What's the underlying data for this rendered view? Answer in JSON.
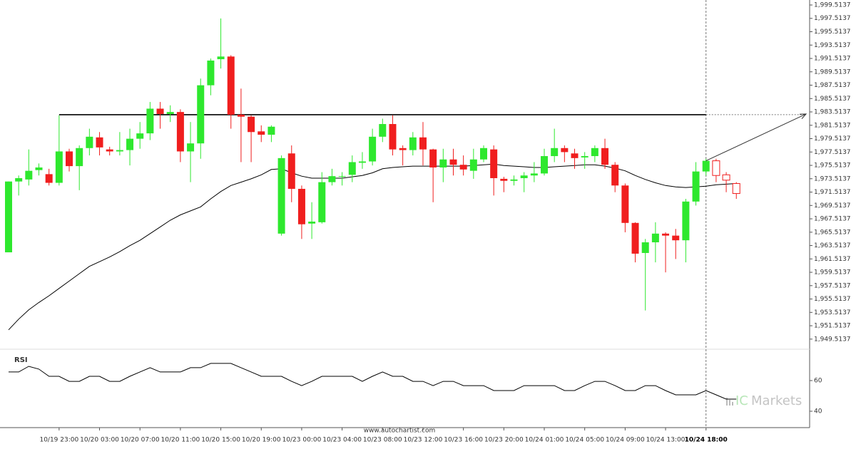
{
  "chart_data": {
    "type": "candlestick",
    "up_color": "#2ee82e",
    "down_color": "#f01e1e",
    "ylim": [
      1948.0,
      2000.26
    ],
    "yticks": [
      {
        "value": 1949.5137,
        "label": "1,949.5137"
      },
      {
        "value": 1951.5137,
        "label": "1,951.5137"
      },
      {
        "value": 1953.5137,
        "label": "1,953.5137"
      },
      {
        "value": 1955.5137,
        "label": "1,955.5137"
      },
      {
        "value": 1957.5137,
        "label": "1,957.5137"
      },
      {
        "value": 1959.5137,
        "label": "1,959.5137"
      },
      {
        "value": 1961.5137,
        "label": "1,961.5137"
      },
      {
        "value": 1963.5137,
        "label": "1,963.5137"
      },
      {
        "value": 1965.5137,
        "label": "1,965.5137"
      },
      {
        "value": 1967.5137,
        "label": "1,967.5137"
      },
      {
        "value": 1969.5137,
        "label": "1,969.5137"
      },
      {
        "value": 1971.5137,
        "label": "1,971.5137"
      },
      {
        "value": 1973.5137,
        "label": "1,973.5137"
      },
      {
        "value": 1975.5137,
        "label": "1,975.5137"
      },
      {
        "value": 1977.5137,
        "label": "1,977.5137"
      },
      {
        "value": 1979.5137,
        "label": "1,979.5137"
      },
      {
        "value": 1981.5137,
        "label": "1,981.5137"
      },
      {
        "value": 1983.5137,
        "label": "1,983.5137"
      },
      {
        "value": 1985.5137,
        "label": "1,985.5137"
      },
      {
        "value": 1987.5137,
        "label": "1,987.5137"
      },
      {
        "value": 1989.5137,
        "label": "1,989.5137"
      },
      {
        "value": 1991.5137,
        "label": "1,991.5137"
      },
      {
        "value": 1993.5137,
        "label": "1,993.5137"
      },
      {
        "value": 1995.5137,
        "label": "1,995.5137"
      },
      {
        "value": 1997.5137,
        "label": "1,997.5137"
      },
      {
        "value": 1999.5137,
        "label": "1,999.5137"
      }
    ],
    "xticks": [
      {
        "value": 5,
        "label": "10/19 23:00"
      },
      {
        "value": 9,
        "label": "10/20 03:00"
      },
      {
        "value": 13,
        "label": "10/20 07:00"
      },
      {
        "value": 17,
        "label": "10/20 11:00"
      },
      {
        "value": 21,
        "label": "10/20 15:00"
      },
      {
        "value": 25,
        "label": "10/20 19:00"
      },
      {
        "value": 29,
        "label": "10/23 00:00"
      },
      {
        "value": 33,
        "label": "10/23 04:00"
      },
      {
        "value": 37,
        "label": "10/23 08:00"
      },
      {
        "value": 41,
        "label": "10/23 12:00"
      },
      {
        "value": 45,
        "label": "10/23 16:00"
      },
      {
        "value": 49,
        "label": "10/23 20:00"
      },
      {
        "value": 53,
        "label": "10/24 01:00"
      },
      {
        "value": 57,
        "label": "10/24 05:00"
      },
      {
        "value": 61,
        "label": "10/24 09:00"
      },
      {
        "value": 65,
        "label": "10/24 13:00"
      },
      {
        "value": 69,
        "label": "10/24 18:00"
      }
    ],
    "open": [
      1962.5,
      1973.1,
      1973.4,
      1974.8,
      1974.2,
      1972.9,
      1977.6,
      1975.4,
      1978.1,
      1979.7,
      1977.9,
      1977.6,
      1977.8,
      1979.5,
      1980.3,
      1984.0,
      1983.2,
      1983.5,
      1977.6,
      1978.8,
      1987.5,
      1991.4,
      1991.8,
      1983.1,
      1982.8,
      1980.6,
      1980.1,
      1965.3,
      1977.3,
      1972.0,
      1966.8,
      1967.0,
      1973.0,
      1973.8,
      1974.1,
      1975.9,
      1976.1,
      1979.8,
      1981.7,
      1978.1,
      1977.8,
      1979.7,
      1977.9,
      1975.2,
      1976.4,
      1975.6,
      1974.7,
      1976.4,
      1977.9,
      1973.5,
      1973.2,
      1973.6,
      1974.0,
      1974.3,
      1976.9,
      1978.1,
      1977.3,
      1976.7,
      1976.9,
      1978.1,
      1975.6,
      1972.5,
      1966.9,
      1962.4,
      1964.0,
      1965.3,
      1965.0,
      1964.3,
      1970.1,
      1974.6
    ],
    "high": [
      1973.1,
      1974.0,
      1977.9,
      1975.8,
      1975.0,
      1983.0,
      1978.0,
      1978.5,
      1981.0,
      1980.5,
      1978.3,
      1980.5,
      1981.0,
      1982.0,
      1985.0,
      1985.0,
      1984.5,
      1983.9,
      1982.0,
      1988.5,
      1991.5,
      1997.5,
      1992.0,
      1987.0,
      1983.0,
      1981.5,
      1981.5,
      1977.0,
      1978.5,
      1972.5,
      1970.0,
      1974.5,
      1975.0,
      1974.5,
      1977.0,
      1977.5,
      1981.0,
      1982.5,
      1983.0,
      1978.5,
      1980.5,
      1982.0,
      1978.0,
      1978.0,
      1978.0,
      1977.0,
      1978.0,
      1978.5,
      1978.5,
      1973.8,
      1974.0,
      1974.5,
      1976.0,
      1978.0,
      1981.0,
      1978.5,
      1978.0,
      1977.5,
      1978.5,
      1979.5,
      1976.0,
      1972.8,
      1967.0,
      1964.5,
      1967.0,
      1965.5,
      1966.0,
      1970.5,
      1976.0,
      1976.5
    ],
    "low": [
      1962.5,
      1971.0,
      1972.5,
      1974.0,
      1972.5,
      1972.5,
      1974.6,
      1971.8,
      1977.0,
      1977.0,
      1977.0,
      1977.0,
      1975.5,
      1978.0,
      1979.3,
      1981.0,
      1982.0,
      1976.0,
      1973.0,
      1976.5,
      1986.0,
      1990.0,
      1981.0,
      1976.0,
      1976.0,
      1979.0,
      1979.0,
      1965.0,
      1970.0,
      1964.5,
      1964.5,
      1966.8,
      1972.5,
      1972.5,
      1973.0,
      1975.0,
      1975.5,
      1979.0,
      1977.0,
      1975.5,
      1977.0,
      1975.5,
      1970.0,
      1973.0,
      1974.0,
      1974.0,
      1973.5,
      1976.0,
      1971.0,
      1971.5,
      1972.5,
      1971.5,
      1973.0,
      1974.0,
      1976.0,
      1976.0,
      1975.0,
      1975.0,
      1976.0,
      1975.0,
      1971.5,
      1965.5,
      1961.0,
      1953.8,
      1961.0,
      1959.5,
      1961.5,
      1961.0,
      1969.5,
      1974.0
    ],
    "close": [
      1973.1,
      1973.6,
      1974.7,
      1975.2,
      1972.9,
      1977.6,
      1975.4,
      1978.1,
      1979.8,
      1978.2,
      1977.6,
      1977.8,
      1979.5,
      1980.3,
      1984.0,
      1983.2,
      1983.5,
      1977.6,
      1978.8,
      1987.5,
      1991.2,
      1991.8,
      1983.1,
      1982.8,
      1980.5,
      1980.1,
      1981.3,
      1976.6,
      1972.0,
      1966.7,
      1967.1,
      1973.0,
      1973.9,
      1973.9,
      1976.0,
      1976.1,
      1979.8,
      1981.7,
      1977.9,
      1977.8,
      1979.7,
      1977.9,
      1975.2,
      1976.4,
      1975.6,
      1974.9,
      1976.4,
      1978.1,
      1973.6,
      1973.2,
      1973.4,
      1974.0,
      1974.3,
      1976.9,
      1978.1,
      1977.5,
      1976.6,
      1976.9,
      1978.1,
      1975.6,
      1972.5,
      1966.9,
      1962.3,
      1964.0,
      1965.3,
      1965.0,
      1964.3,
      1970.1,
      1974.6,
      1976.2
    ],
    "forecast": {
      "open": [
        1976.2,
        1974.1,
        1972.8
      ],
      "high": [
        1976.5,
        1974.5,
        1973.0
      ],
      "low": [
        1973.0,
        1971.5,
        1970.5
      ],
      "close": [
        1974.0,
        1973.3,
        1971.3
      ]
    },
    "moving_average": [
      1950.9,
      1952.5,
      1953.9,
      1955.0,
      1956.0,
      1957.1,
      1958.2,
      1959.3,
      1960.4,
      1961.1,
      1961.8,
      1962.6,
      1963.5,
      1964.3,
      1965.3,
      1966.3,
      1967.3,
      1968.1,
      1968.7,
      1969.3,
      1970.5,
      1971.6,
      1972.5,
      1973.0,
      1973.5,
      1974.1,
      1974.9,
      1975.0,
      1974.4,
      1973.9,
      1973.6,
      1973.6,
      1973.6,
      1973.6,
      1973.8,
      1974.0,
      1974.4,
      1975.0,
      1975.2,
      1975.3,
      1975.4,
      1975.4,
      1975.4,
      1975.4,
      1975.4,
      1975.4,
      1975.5,
      1975.6,
      1975.7,
      1975.5,
      1975.4,
      1975.3,
      1975.2,
      1975.2,
      1975.3,
      1975.4,
      1975.5,
      1975.6,
      1975.6,
      1975.4,
      1975.1,
      1974.7,
      1974.0,
      1973.4,
      1972.9,
      1972.5,
      1972.3,
      1972.2,
      1972.3,
      1972.4,
      1972.6,
      1972.7,
      1972.8
    ],
    "resistance": 1983.1,
    "projection_target": 1983.2,
    "rsi_title": "RSI",
    "rsi_ylim": [
      30.7,
      77.2
    ],
    "rsi_yticks": [
      40,
      60
    ],
    "rsi": [
      65.6,
      65.6,
      69.3,
      67.5,
      62.8,
      62.8,
      59.5,
      59.5,
      62.8,
      62.8,
      59.5,
      59.5,
      62.8,
      65.6,
      68.4,
      65.6,
      65.6,
      65.6,
      68.4,
      68.4,
      71.2,
      71.2,
      71.2,
      68.4,
      65.6,
      62.8,
      62.8,
      62.8,
      59.5,
      56.7,
      59.5,
      62.8,
      62.8,
      62.8,
      62.8,
      59.5,
      62.8,
      65.6,
      62.8,
      62.8,
      59.5,
      59.5,
      56.7,
      59.5,
      59.5,
      56.7,
      56.7,
      56.7,
      53.5,
      53.5,
      53.5,
      56.7,
      56.7,
      56.7,
      56.7,
      53.5,
      53.5,
      56.7,
      59.5,
      59.5,
      56.7,
      53.5,
      53.5,
      56.7,
      56.7,
      53.5,
      50.7,
      50.7,
      50.7,
      53.5,
      50.7,
      47.9,
      47.9
    ],
    "source": "www.autochartist.com",
    "brand_prefix": "IC",
    "brand_name": "Markets"
  }
}
